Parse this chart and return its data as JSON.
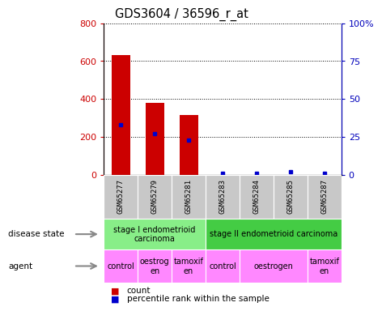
{
  "title": "GDS3604 / 36596_r_at",
  "samples": [
    "GSM65277",
    "GSM65279",
    "GSM65281",
    "GSM65283",
    "GSM65284",
    "GSM65285",
    "GSM65287"
  ],
  "count_values": [
    630,
    378,
    315,
    0,
    0,
    0,
    0
  ],
  "percentile_values": [
    33,
    27,
    23,
    1,
    1,
    2,
    1
  ],
  "ylim_left": [
    0,
    800
  ],
  "ylim_right": [
    0,
    100
  ],
  "yticks_left": [
    0,
    200,
    400,
    600,
    800
  ],
  "yticks_right": [
    0,
    25,
    50,
    75,
    100
  ],
  "ytick_labels_right": [
    "0",
    "25",
    "50",
    "75",
    "100%"
  ],
  "disease_state_groups": [
    {
      "label": "stage I endometrioid\ncarcinoma",
      "start": 0,
      "end": 3,
      "color": "#90ee90"
    },
    {
      "label": "stage II endometrioid carcinoma",
      "start": 3,
      "end": 7,
      "color": "#44cc44"
    }
  ],
  "agent_groups": [
    {
      "label": "control",
      "start": 0,
      "end": 1
    },
    {
      "label": "oestrog\nen",
      "start": 1,
      "end": 2
    },
    {
      "label": "tamoxif\nen",
      "start": 2,
      "end": 3
    },
    {
      "label": "control",
      "start": 3,
      "end": 4
    },
    {
      "label": "oestrogen",
      "start": 4,
      "end": 6
    },
    {
      "label": "tamoxif\nen",
      "start": 6,
      "end": 7
    }
  ],
  "bar_color": "#cc0000",
  "dot_color": "#0000cc",
  "tick_color_left": "#cc0000",
  "tick_color_right": "#0000bb",
  "sample_bg_color": "#c8c8c8",
  "agent_color": "#ff88ff",
  "ds_color_1": "#88ee88",
  "ds_color_2": "#44cc44",
  "label_color": "#333333",
  "arrow_color": "#888888"
}
